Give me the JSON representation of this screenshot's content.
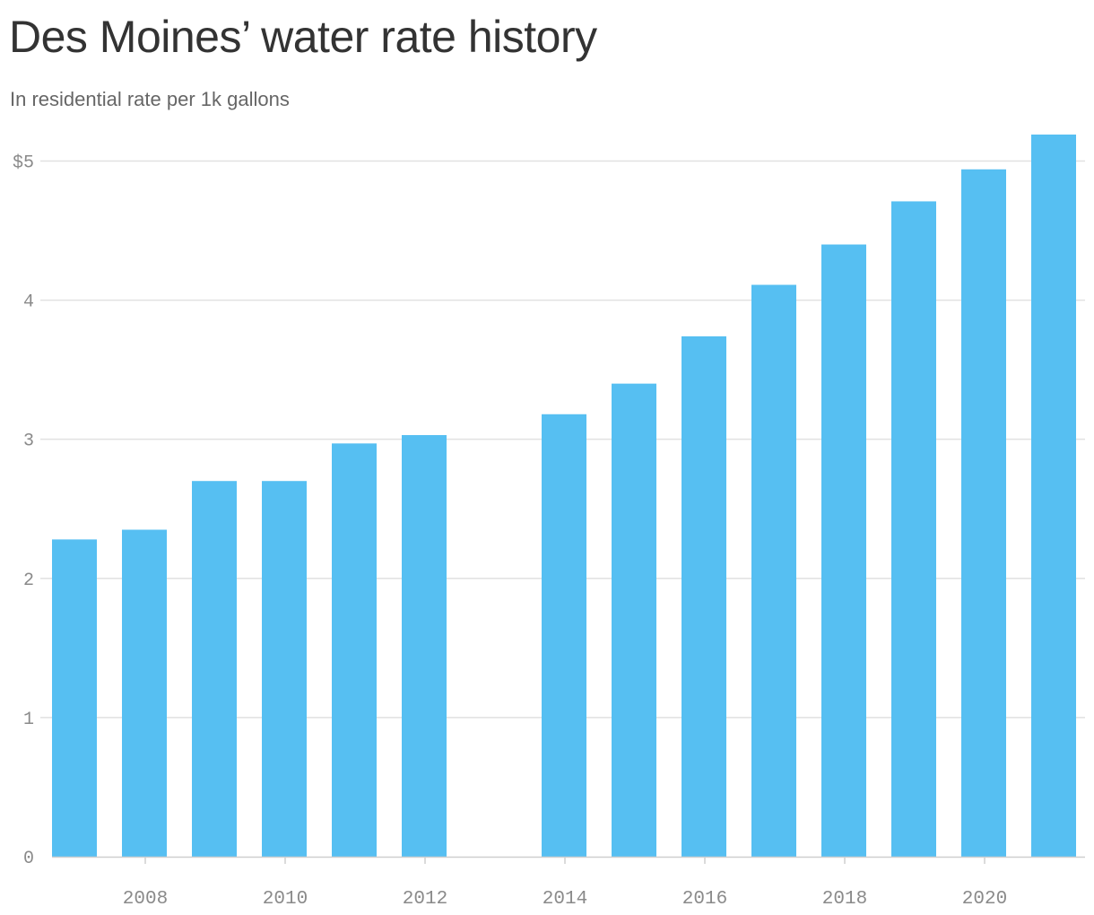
{
  "title": "Des Moines’ water rate history",
  "subtitle": "In residential rate per 1k gallons",
  "colors": {
    "bar": "#56bff2",
    "grid": "#e1e1e1",
    "axis": "#cfcfcf",
    "title": "#333333",
    "subtitle": "#666666",
    "tick": "#8a8a8a"
  },
  "chart_data": {
    "type": "bar",
    "title": "Des Moines’ water rate history",
    "subtitle": "In residential rate per 1k gallons",
    "xlabel": "",
    "ylabel": "",
    "categories": [
      2007,
      2008,
      2009,
      2010,
      2011,
      2012,
      2013,
      2014,
      2015,
      2016,
      2017,
      2018,
      2019,
      2020,
      2021
    ],
    "values": [
      2.28,
      2.35,
      2.7,
      2.7,
      2.97,
      3.03,
      null,
      3.18,
      3.4,
      3.74,
      4.11,
      4.4,
      4.71,
      4.94,
      5.19
    ],
    "ylim": [
      0,
      5.19
    ],
    "y_ticks": [
      0,
      1,
      2,
      3,
      4,
      5
    ],
    "y_tick_labels": [
      "0",
      "1",
      "2",
      "3",
      "4",
      "$5"
    ],
    "x_ticks": [
      2008,
      2010,
      2012,
      2014,
      2016,
      2018,
      2020
    ],
    "x_tick_labels": [
      "2008",
      "2010",
      "2012",
      "2014",
      "2016",
      "2018",
      "2020"
    ],
    "grid": true,
    "legend": "none"
  }
}
